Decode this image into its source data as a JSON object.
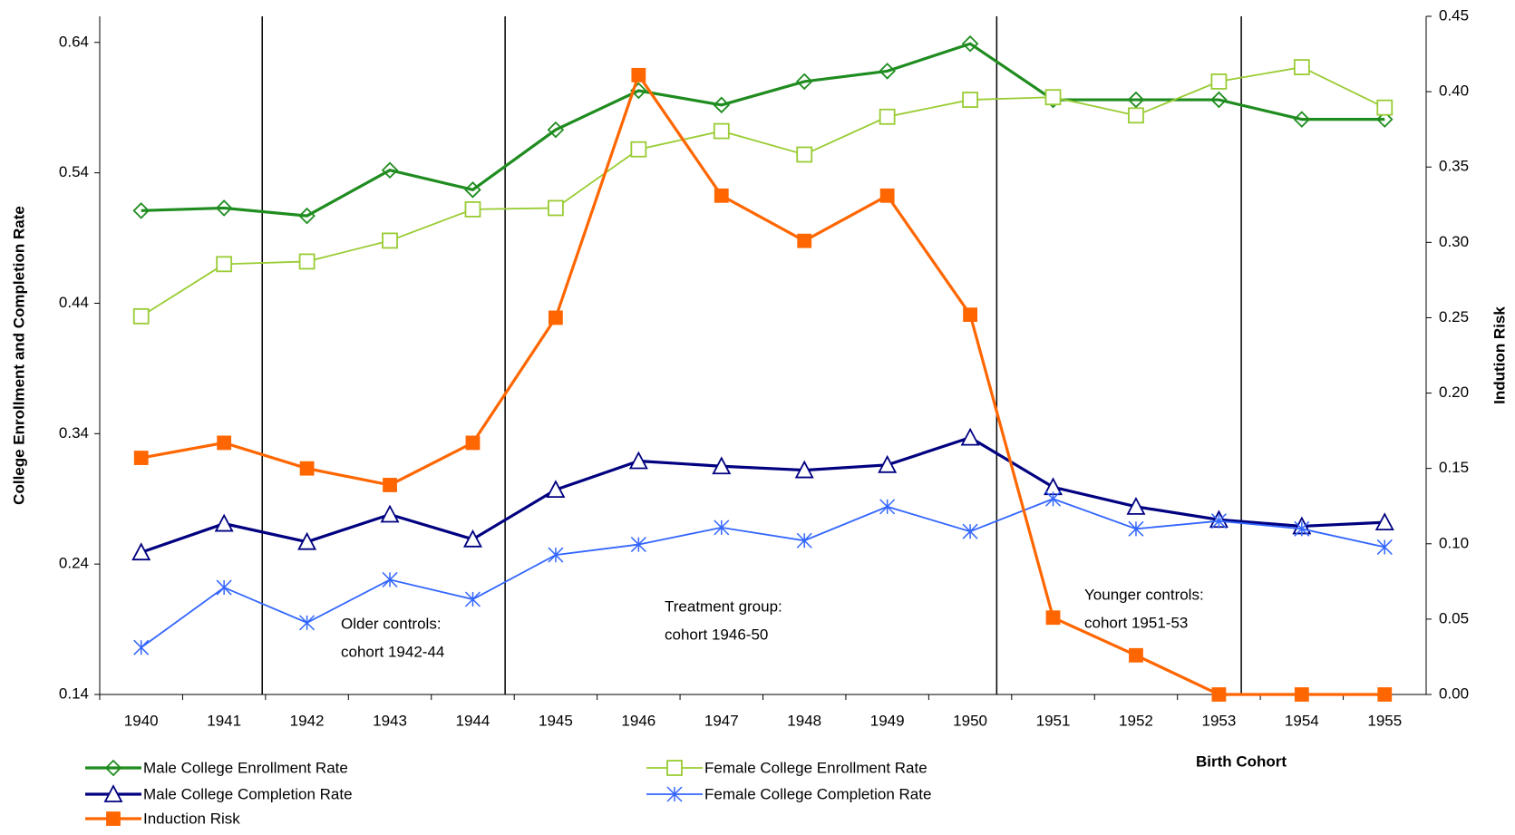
{
  "chart_data": {
    "type": "line",
    "x_label": "Birth Cohort",
    "y_label": "College Enrollment and Completion Rate",
    "y2_label": "Indution Risk",
    "categories": [
      "1940",
      "1941",
      "1942",
      "1943",
      "1944",
      "1945",
      "1946",
      "1947",
      "1948",
      "1949",
      "1950",
      "1951",
      "1952",
      "1953",
      "1954",
      "1955"
    ],
    "ylim": [
      0.14,
      0.66
    ],
    "yticks": [
      0.14,
      0.24,
      0.34,
      0.44,
      0.54,
      0.64
    ],
    "y2lim": [
      0,
      0.45
    ],
    "y2ticks": [
      {
        "value": 0,
        "label": "0.00"
      },
      0.05,
      {
        "value": 0.1,
        "label": "0.10"
      },
      0.15,
      {
        "value": 0.2,
        "label": "0.20"
      },
      0.25,
      {
        "value": 0.3,
        "label": "0.30"
      },
      0.35,
      {
        "value": 0.4,
        "label": "0.40"
      },
      0.45
    ],
    "series": [
      {
        "name": "Male College Enrollment Rate",
        "color": "#1f8c1f",
        "marker": "diamond",
        "values": [
          0.511,
          0.513,
          0.507,
          0.542,
          0.527,
          0.573,
          0.603,
          0.592,
          0.61,
          0.618,
          0.639,
          0.596,
          0.596,
          0.596,
          0.581,
          0.581
        ]
      },
      {
        "name": "Female College Enrollment Rate",
        "color": "#99cc33",
        "marker": "square",
        "values": [
          0.43,
          0.47,
          0.472,
          0.488,
          0.512,
          0.513,
          0.558,
          0.572,
          0.554,
          0.583,
          0.596,
          0.598,
          0.584,
          0.61,
          0.621,
          0.59
        ]
      },
      {
        "name": "Male College Completion Rate",
        "color": "#000080",
        "marker": "triangle",
        "values": [
          0.249,
          0.271,
          0.257,
          0.278,
          0.259,
          0.297,
          0.319,
          0.315,
          0.312,
          0.316,
          0.337,
          0.299,
          0.284,
          0.274,
          0.269,
          0.272
        ]
      },
      {
        "name": "Female College Completion Rate",
        "color": "#3366ff",
        "marker": "asterisk",
        "values": [
          0.176,
          0.222,
          0.195,
          0.228,
          0.213,
          0.247,
          0.255,
          0.268,
          0.258,
          0.284,
          0.265,
          0.29,
          0.267,
          0.273,
          0.267,
          0.253
        ]
      },
      {
        "name": "Induction Risk",
        "color": "#ff6600",
        "marker": "filled-square",
        "axis": "y2",
        "values": [
          0.157,
          0.167,
          0.15,
          0.139,
          0.167,
          0.25,
          0.411,
          0.331,
          0.301,
          0.331,
          0.252,
          0.051,
          0.026,
          0,
          0,
          0
        ]
      }
    ],
    "annotations": [
      {
        "lines": [
          "Older controls:",
          "cohort 1942-44"
        ]
      },
      {
        "lines": [
          "Treatment group:",
          "cohort 1946-50"
        ]
      },
      {
        "lines": [
          "Younger controls:",
          "cohort 1951-53"
        ]
      }
    ]
  }
}
